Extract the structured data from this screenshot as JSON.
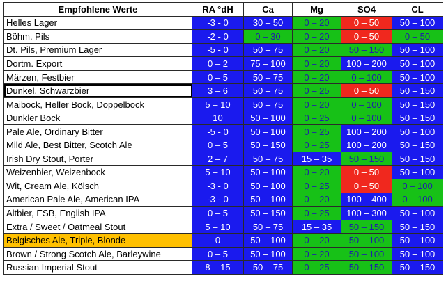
{
  "headers": [
    "Empfohlene Werte",
    "RA °dH",
    "Ca",
    "Mg",
    "SO4",
    "CL"
  ],
  "colors": {
    "blue": "#1a1aee",
    "green": "#17c117",
    "red": "#f0281e",
    "highlight": "#ffc000"
  },
  "rows": [
    {
      "style": "Helles Lager",
      "cells": [
        {
          "v": "-3 - 0",
          "c": "b"
        },
        {
          "v": "30 – 50",
          "c": "b"
        },
        {
          "v": "0 – 20",
          "c": "g"
        },
        {
          "v": "0 – 50",
          "c": "r"
        },
        {
          "v": "50 – 100",
          "c": "b"
        }
      ]
    },
    {
      "style": "Böhm. Pils",
      "cells": [
        {
          "v": "-2 - 0",
          "c": "b"
        },
        {
          "v": "0 – 30",
          "c": "g"
        },
        {
          "v": "0 – 20",
          "c": "g"
        },
        {
          "v": "0 – 50",
          "c": "r"
        },
        {
          "v": "0 – 50",
          "c": "g"
        }
      ]
    },
    {
      "style": "Dt. Pils, Premium Lager",
      "cells": [
        {
          "v": "-5 - 0",
          "c": "b"
        },
        {
          "v": "50 – 75",
          "c": "b"
        },
        {
          "v": "0 – 20",
          "c": "g"
        },
        {
          "v": "50 – 150",
          "c": "g"
        },
        {
          "v": "50 – 100",
          "c": "b"
        }
      ]
    },
    {
      "style": "Dortm. Export",
      "cells": [
        {
          "v": "0 – 2",
          "c": "b"
        },
        {
          "v": "75 – 100",
          "c": "b"
        },
        {
          "v": "0 – 20",
          "c": "g"
        },
        {
          "v": "100 – 200",
          "c": "b"
        },
        {
          "v": "50 – 100",
          "c": "b"
        }
      ]
    },
    {
      "style": "Märzen, Festbier",
      "cells": [
        {
          "v": "0 – 5",
          "c": "b"
        },
        {
          "v": "50 – 75",
          "c": "b"
        },
        {
          "v": "0 – 20",
          "c": "g"
        },
        {
          "v": "0 – 100",
          "c": "g"
        },
        {
          "v": "50 – 100",
          "c": "b"
        }
      ]
    },
    {
      "style": "Dunkel, Schwarzbier",
      "sel": true,
      "cells": [
        {
          "v": "3 – 6",
          "c": "b"
        },
        {
          "v": "50 – 75",
          "c": "b"
        },
        {
          "v": "0 – 25",
          "c": "g"
        },
        {
          "v": "0 – 50",
          "c": "r"
        },
        {
          "v": "50 – 150",
          "c": "b"
        }
      ]
    },
    {
      "style": "Maibock, Heller Bock, Doppelbock",
      "cells": [
        {
          "v": "5 – 10",
          "c": "b"
        },
        {
          "v": "50 – 75",
          "c": "b"
        },
        {
          "v": "0 – 20",
          "c": "g"
        },
        {
          "v": "0 – 100",
          "c": "g"
        },
        {
          "v": "50 – 150",
          "c": "b"
        }
      ]
    },
    {
      "style": "Dunkler Bock",
      "cells": [
        {
          "v": "10",
          "c": "b"
        },
        {
          "v": "50 – 100",
          "c": "b"
        },
        {
          "v": "0 – 25",
          "c": "g"
        },
        {
          "v": "0 – 100",
          "c": "g"
        },
        {
          "v": "50 – 150",
          "c": "b"
        }
      ]
    },
    {
      "style": "Pale Ale, Ordinary Bitter",
      "cells": [
        {
          "v": "-5 - 0",
          "c": "b"
        },
        {
          "v": "50 – 100",
          "c": "b"
        },
        {
          "v": "0 – 25",
          "c": "g"
        },
        {
          "v": "100 – 200",
          "c": "b"
        },
        {
          "v": "50 – 100",
          "c": "b"
        }
      ]
    },
    {
      "style": "Mild Ale, Best Bitter, Scotch Ale",
      "cells": [
        {
          "v": "0 – 5",
          "c": "b"
        },
        {
          "v": "50 – 150",
          "c": "b"
        },
        {
          "v": "0 – 25",
          "c": "g"
        },
        {
          "v": "100 – 200",
          "c": "b"
        },
        {
          "v": "50 – 150",
          "c": "b"
        }
      ]
    },
    {
      "style": "Irish Dry Stout, Porter",
      "cells": [
        {
          "v": "2 – 7",
          "c": "b"
        },
        {
          "v": "50 – 75",
          "c": "b"
        },
        {
          "v": "15 – 35",
          "c": "b"
        },
        {
          "v": "50 – 150",
          "c": "g"
        },
        {
          "v": "50 – 150",
          "c": "b"
        }
      ]
    },
    {
      "style": "Weizenbier, Weizenbock",
      "cells": [
        {
          "v": "5 – 10",
          "c": "b"
        },
        {
          "v": "50 – 100",
          "c": "b"
        },
        {
          "v": "0 – 20",
          "c": "g"
        },
        {
          "v": "0 – 50",
          "c": "r"
        },
        {
          "v": "50 – 100",
          "c": "b"
        }
      ]
    },
    {
      "style": "Wit, Cream Ale, Kölsch",
      "cells": [
        {
          "v": "-3 - 0",
          "c": "b"
        },
        {
          "v": "50 – 100",
          "c": "b"
        },
        {
          "v": "0 – 25",
          "c": "g"
        },
        {
          "v": "0 – 50",
          "c": "r"
        },
        {
          "v": "0 – 100",
          "c": "g"
        }
      ]
    },
    {
      "style": "American Pale Ale, American IPA",
      "cells": [
        {
          "v": "-3 - 0",
          "c": "b"
        },
        {
          "v": "50 – 100",
          "c": "b"
        },
        {
          "v": "0 – 20",
          "c": "g"
        },
        {
          "v": "100 – 400",
          "c": "b"
        },
        {
          "v": "0 – 100",
          "c": "g"
        }
      ]
    },
    {
      "style": "Altbier, ESB, English IPA",
      "cells": [
        {
          "v": "0 – 5",
          "c": "b"
        },
        {
          "v": "50 – 150",
          "c": "b"
        },
        {
          "v": "0 – 25",
          "c": "g"
        },
        {
          "v": "100 – 300",
          "c": "b"
        },
        {
          "v": "50 – 100",
          "c": "b"
        }
      ]
    },
    {
      "style": "Extra / Sweet / Oatmeal Stout",
      "cells": [
        {
          "v": "5 – 10",
          "c": "b"
        },
        {
          "v": "50 – 75",
          "c": "b"
        },
        {
          "v": "15 – 35",
          "c": "b"
        },
        {
          "v": "50 – 150",
          "c": "g"
        },
        {
          "v": "50 – 150",
          "c": "b"
        }
      ]
    },
    {
      "style": "Belgisches Ale, Triple, Blonde",
      "hl": true,
      "cells": [
        {
          "v": "0",
          "c": "b"
        },
        {
          "v": "50 – 100",
          "c": "b"
        },
        {
          "v": "0 – 20",
          "c": "g"
        },
        {
          "v": "50 – 100",
          "c": "g"
        },
        {
          "v": "50 – 100",
          "c": "b"
        }
      ]
    },
    {
      "style": "Brown / Strong Scotch Ale, Barleywine",
      "cells": [
        {
          "v": "0 – 5",
          "c": "b"
        },
        {
          "v": "50 – 100",
          "c": "b"
        },
        {
          "v": "0 – 20",
          "c": "g"
        },
        {
          "v": "50 – 100",
          "c": "g"
        },
        {
          "v": "50 – 100",
          "c": "b"
        }
      ]
    },
    {
      "style": "Russian Imperial Stout",
      "cells": [
        {
          "v": "8 – 15",
          "c": "b"
        },
        {
          "v": "50 – 75",
          "c": "b"
        },
        {
          "v": "0 – 25",
          "c": "g"
        },
        {
          "v": "50 – 150",
          "c": "g"
        },
        {
          "v": "50 – 150",
          "c": "b"
        }
      ]
    }
  ]
}
